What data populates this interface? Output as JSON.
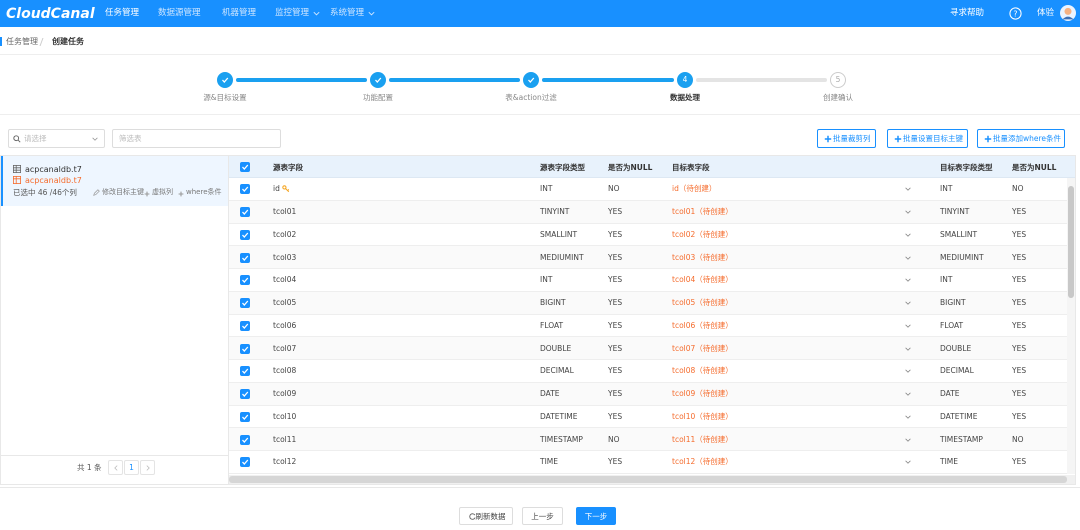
{
  "nav": {
    "logo": "CloudCanal",
    "menu": [
      "任务管理",
      "数据源管理",
      "机器管理",
      "监控管理",
      "系统管理"
    ],
    "help": "寻求帮助",
    "user": "体验"
  },
  "breadcrumb": [
    "任务管理",
    "创建任务"
  ],
  "steps": [
    {
      "label": "源&目标设置"
    },
    {
      "label": "功能配置"
    },
    {
      "label": "表&action过滤"
    },
    {
      "number": 4,
      "label": "数据处理"
    },
    {
      "number": 5,
      "label": "创建确认"
    }
  ],
  "filter": {
    "select_placeholder": "请选择",
    "table_placeholder": "筛选表"
  },
  "batch_buttons": [
    "批量裁剪列",
    "批量设置目标主键",
    "批量添加where条件"
  ],
  "left_panel": {
    "source_table": "acpcanaldb.t7",
    "target_table": "acpcanaldb.t7",
    "selected": "已选中 46 /46个列",
    "actions": [
      "修改目标主键",
      "虚拟列",
      "where条件"
    ]
  },
  "pagination": {
    "total": "共 1 条",
    "page": 1
  },
  "table": {
    "columns": [
      "源表字段",
      "源表字段类型",
      "是否为NULL",
      "目标表字段",
      "目标表字段类型",
      "是否为NULL"
    ],
    "rows": [
      [
        "id",
        "INT",
        "NO",
        "id（待创建）",
        "INT",
        "NO"
      ],
      [
        "tcol01",
        "TINYINT",
        "YES",
        "tcol01（待创建）",
        "TINYINT",
        "YES"
      ],
      [
        "tcol02",
        "SMALLINT",
        "YES",
        "tcol02（待创建）",
        "SMALLINT",
        "YES"
      ],
      [
        "tcol03",
        "MEDIUMINT",
        "YES",
        "tcol03（待创建）",
        "MEDIUMINT",
        "YES"
      ],
      [
        "tcol04",
        "INT",
        "YES",
        "tcol04（待创建）",
        "INT",
        "YES"
      ],
      [
        "tcol05",
        "BIGINT",
        "YES",
        "tcol05（待创建）",
        "BIGINT",
        "YES"
      ],
      [
        "tcol06",
        "FLOAT",
        "YES",
        "tcol06（待创建）",
        "FLOAT",
        "YES"
      ],
      [
        "tcol07",
        "DOUBLE",
        "YES",
        "tcol07（待创建）",
        "DOUBLE",
        "YES"
      ],
      [
        "tcol08",
        "DECIMAL",
        "YES",
        "tcol08（待创建）",
        "DECIMAL",
        "YES"
      ],
      [
        "tcol09",
        "DATE",
        "YES",
        "tcol09（待创建）",
        "DATE",
        "YES"
      ],
      [
        "tcol10",
        "DATETIME",
        "YES",
        "tcol10（待创建）",
        "DATETIME",
        "YES"
      ],
      [
        "tcol11",
        "TIMESTAMP",
        "NO",
        "tcol11（待创建）",
        "TIMESTAMP",
        "NO"
      ],
      [
        "tcol12",
        "TIME",
        "YES",
        "tcol12（待创建）",
        "TIME",
        "YES"
      ]
    ]
  },
  "footer": {
    "refresh": "刷新数据",
    "prev": "上一步",
    "next": "下一步"
  }
}
